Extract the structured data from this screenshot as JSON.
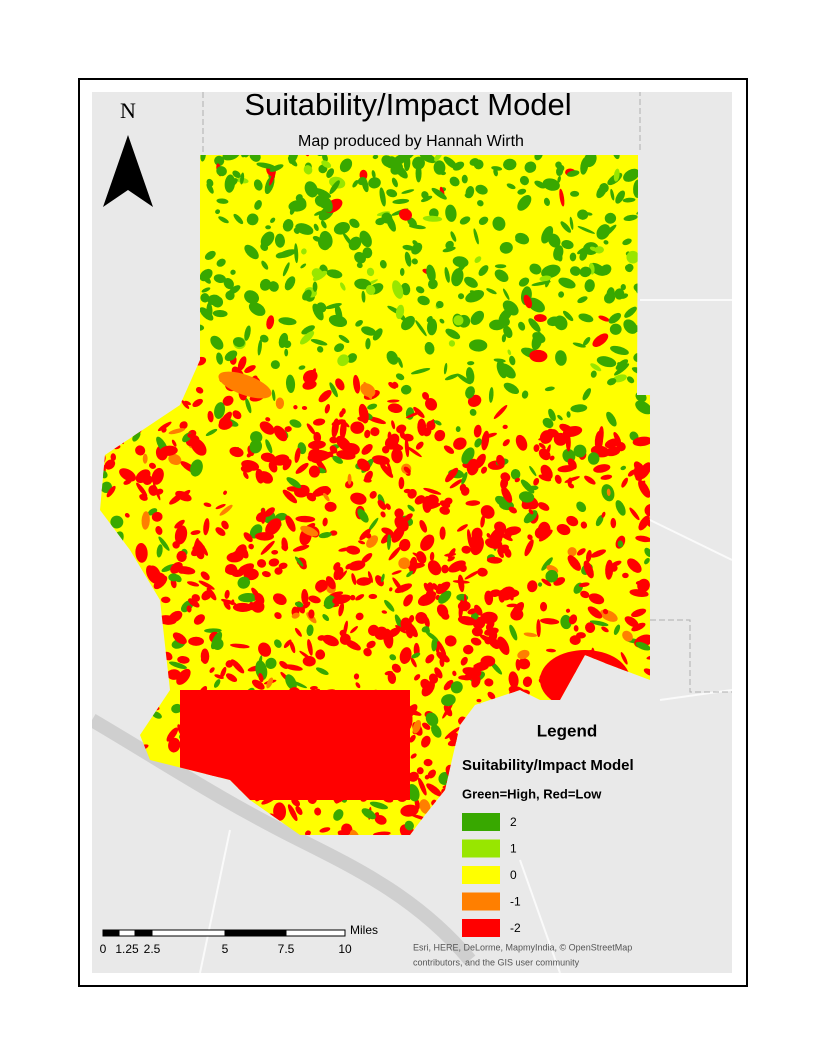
{
  "map": {
    "title": "Suitability/Impact Model",
    "subtitle": "Map produced by Hannah Wirth",
    "north_label": "N"
  },
  "legend": {
    "title": "Legend",
    "layer": "Suitability/Impact Model",
    "description": "Green=High, Red=Low",
    "items": [
      {
        "label": "2",
        "color": "#38a800"
      },
      {
        "label": "1",
        "color": "#98e600"
      },
      {
        "label": "0",
        "color": "#ffff00"
      },
      {
        "label": "-1",
        "color": "#ff7f00"
      },
      {
        "label": "-2",
        "color": "#ff0000"
      }
    ]
  },
  "scale_bar": {
    "labels": [
      "0",
      "1.25",
      "2.5",
      "5",
      "7.5",
      "10"
    ],
    "unit": "Miles"
  },
  "attribution": [
    "Esri, HERE, DeLorme, MapmyIndia, © OpenStreetMap",
    "contributors, and the GIS user community"
  ]
}
